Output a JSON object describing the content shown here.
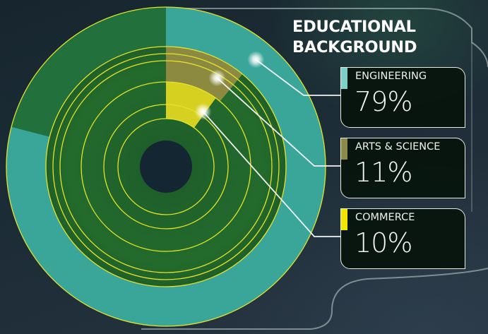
{
  "chart_data": {
    "type": "pie",
    "title": "EDUCATIONAL BACKGROUND",
    "categories": [
      "ENGINEERING",
      "ARTS & SCIENCE",
      "COMMERCE"
    ],
    "values": [
      79,
      11,
      10
    ],
    "value_labels": [
      "79%",
      "11%",
      "10%"
    ],
    "colors": [
      "#3aa69a",
      "#8c8a40",
      "#d6d020"
    ],
    "style": "concentric-rings-with-callouts"
  },
  "title_lines": [
    "EDUCATIONAL",
    "BACKGROUND"
  ],
  "cards": [
    {
      "label": "ENGINEERING",
      "value": "79%",
      "color": "#7ecfc8"
    },
    {
      "label": "ARTS & SCIENCE",
      "value": "11%",
      "color": "#8c8a48"
    },
    {
      "label": "COMMERCE",
      "value": "10%",
      "color": "#f2e600"
    }
  ]
}
